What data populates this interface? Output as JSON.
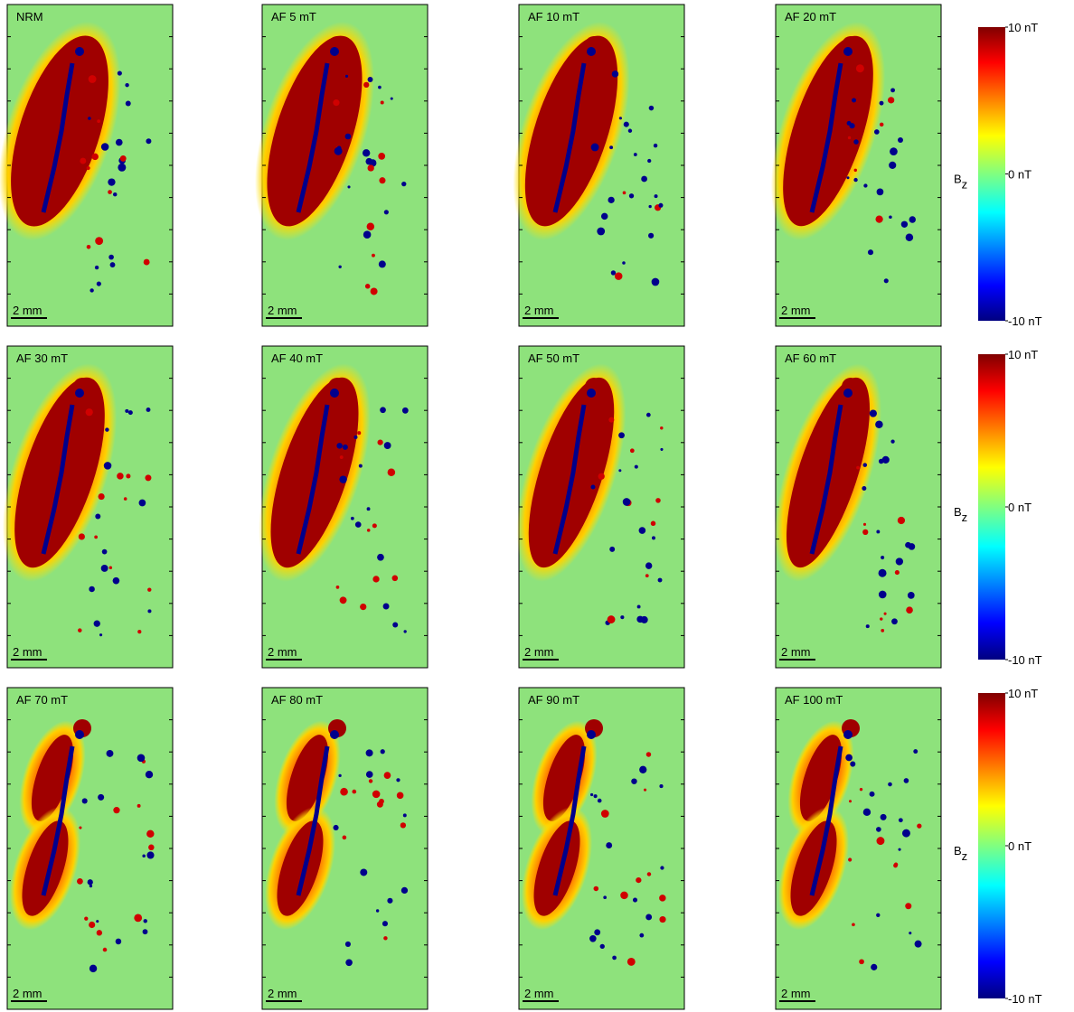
{
  "panels": [
    {
      "label": "NRM",
      "scale_bar": "2 mm"
    },
    {
      "label": "AF 5 mT",
      "scale_bar": "2 mm"
    },
    {
      "label": "AF 10 mT",
      "scale_bar": "2 mm"
    },
    {
      "label": "AF 20 mT",
      "scale_bar": "2 mm"
    },
    {
      "label": "AF 30 mT",
      "scale_bar": "2 mm"
    },
    {
      "label": "AF 40 mT",
      "scale_bar": "2 mm"
    },
    {
      "label": "AF 50 mT",
      "scale_bar": "2 mm"
    },
    {
      "label": "AF 60 mT",
      "scale_bar": "2 mm"
    },
    {
      "label": "AF 70 mT",
      "scale_bar": "2 mm"
    },
    {
      "label": "AF 80 mT",
      "scale_bar": "2 mm"
    },
    {
      "label": "AF 90 mT",
      "scale_bar": "2 mm"
    },
    {
      "label": "AF 100 mT",
      "scale_bar": "2 mm"
    }
  ],
  "colorbars": [
    {
      "title": "B",
      "title_sub": "z",
      "ticks": [
        {
          "value": 10,
          "label": "10 nT"
        },
        {
          "value": 0,
          "label": "0 nT"
        },
        {
          "value": -10,
          "label": "-10 nT"
        }
      ]
    },
    {
      "title": "B",
      "title_sub": "z",
      "ticks": [
        {
          "value": 10,
          "label": "10 nT"
        },
        {
          "value": 0,
          "label": "0 nT"
        },
        {
          "value": -10,
          "label": "-10 nT"
        }
      ]
    },
    {
      "title": "B",
      "title_sub": "z",
      "ticks": [
        {
          "value": 10,
          "label": "10 nT"
        },
        {
          "value": 0,
          "label": "0 nT"
        },
        {
          "value": -10,
          "label": "-10 nT"
        }
      ]
    }
  ]
}
